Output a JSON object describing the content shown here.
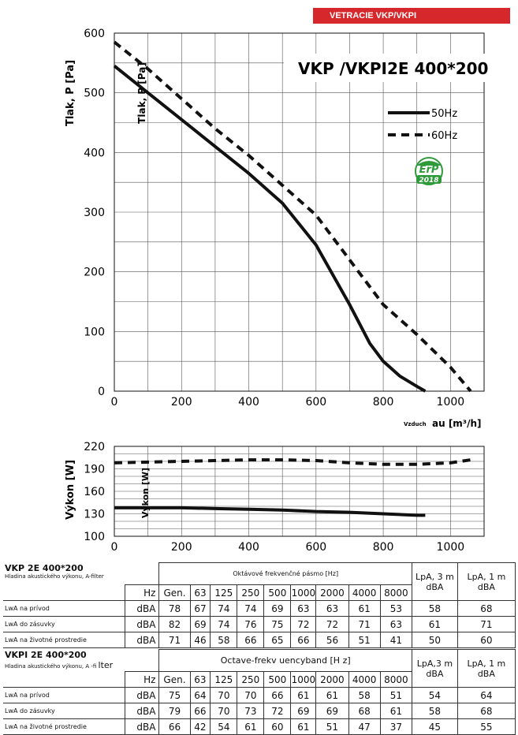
{
  "banner": "VETRACIE VKP/VKPI",
  "chart_data": [
    {
      "type": "line",
      "title": "VKP /VKPI2E 400*200",
      "ylabel": "Tlak, P [Pa]",
      "xlabel_prefix": "Vzduch",
      "xlabel": "au [m³/h]",
      "xlim": [
        0,
        1100
      ],
      "ylim": [
        0,
        600
      ],
      "xticks": [
        "0",
        "200",
        "400",
        "600",
        "800",
        "1000"
      ],
      "yticks": [
        "0",
        "100",
        "200",
        "300",
        "400",
        "500",
        "600"
      ],
      "grid": true,
      "legend_position": "top-right",
      "badge": {
        "top": "ErP",
        "bottom": "2018"
      },
      "series": [
        {
          "name": "50Hz",
          "style": "solid",
          "x": [
            0,
            100,
            200,
            300,
            400,
            500,
            600,
            700,
            760,
            800,
            850,
            900,
            925
          ],
          "y": [
            545,
            500,
            455,
            410,
            365,
            315,
            245,
            145,
            80,
            50,
            25,
            8,
            0
          ]
        },
        {
          "name": "60Hz",
          "style": "dashed",
          "x": [
            0,
            100,
            200,
            300,
            400,
            500,
            600,
            700,
            800,
            900,
            1000,
            1060
          ],
          "y": [
            585,
            540,
            490,
            440,
            395,
            345,
            295,
            220,
            145,
            95,
            40,
            0
          ]
        }
      ]
    },
    {
      "type": "line",
      "ylabel": "Výkon [W]",
      "xlim": [
        0,
        1100
      ],
      "ylim": [
        100,
        220
      ],
      "xticks": [
        "0",
        "200",
        "400",
        "600",
        "800",
        "1000"
      ],
      "yticks": [
        "100",
        "130",
        "160",
        "190",
        "220"
      ],
      "grid": true,
      "series": [
        {
          "style": "solid",
          "x": [
            0,
            100,
            200,
            300,
            400,
            500,
            600,
            700,
            800,
            900,
            925
          ],
          "y": [
            138,
            138,
            138,
            137,
            136,
            135,
            133,
            132,
            130,
            128,
            128
          ]
        },
        {
          "style": "dashed",
          "x": [
            0,
            100,
            200,
            300,
            400,
            500,
            600,
            700,
            750,
            800,
            900,
            1000,
            1060
          ],
          "y": [
            198,
            199,
            200,
            201,
            202,
            202,
            201,
            198,
            197,
            196,
            196,
            198,
            202
          ]
        }
      ]
    }
  ],
  "tables": [
    {
      "title": "VKP 2E 400*200",
      "subtitle": "Hladina akustického výkonu, A-filter",
      "band_label": "Oktávové frekvenčné pásmo [Hz]",
      "unit_label": "Hz",
      "headers": [
        "Gen.",
        "63",
        "125",
        "250",
        "500",
        "1000",
        "2000",
        "4000",
        "8000"
      ],
      "lp3": [
        "LpA, 3 m",
        "dBA"
      ],
      "lp1": [
        "LpA, 1 m",
        "dBA"
      ],
      "rows": [
        {
          "label": "LwA na prívod",
          "unit": "dBA",
          "values": [
            "78",
            "67",
            "74",
            "74",
            "69",
            "63",
            "63",
            "61",
            "53"
          ],
          "lp3": "58",
          "lp1": "68"
        },
        {
          "label": "LwA do zásuvky",
          "unit": "dBA",
          "values": [
            "82",
            "69",
            "74",
            "76",
            "75",
            "72",
            "72",
            "71",
            "63"
          ],
          "lp3": "61",
          "lp1": "71"
        },
        {
          "label": "LwA na životné prostredie",
          "unit": "dBA",
          "values": [
            "71",
            "46",
            "58",
            "66",
            "65",
            "66",
            "56",
            "51",
            "41"
          ],
          "lp3": "50",
          "lp1": "60"
        }
      ]
    },
    {
      "title": "VKPI 2E 400*200",
      "subtitle": "Hladina akustického výkonu, A -fi",
      "subtitle_tail": "lter",
      "band_label": "Octave-frekv uencyband [H z]",
      "unit_label": "Hz",
      "headers": [
        "Gen.",
        "63",
        "125",
        "250",
        "500",
        "1000",
        "2000",
        "4000",
        "8000"
      ],
      "lp3": [
        "LpA,3 m",
        "dBA"
      ],
      "lp1": [
        "LpA, 1 m",
        "dBA"
      ],
      "rows": [
        {
          "label": "LwA na prívod",
          "unit": "dBA",
          "values": [
            "75",
            "64",
            "70",
            "70",
            "66",
            "61",
            "61",
            "58",
            "51"
          ],
          "lp3": "54",
          "lp1": "64"
        },
        {
          "label": "LwA do zásuvky",
          "unit": "dBA",
          "values": [
            "79",
            "66",
            "70",
            "73",
            "72",
            "69",
            "69",
            "68",
            "61"
          ],
          "lp3": "58",
          "lp1": "68"
        },
        {
          "label": "LwA na životné prostredie",
          "unit": "dBA",
          "values": [
            "66",
            "42",
            "54",
            "61",
            "60",
            "61",
            "51",
            "47",
            "37"
          ],
          "lp3": "45",
          "lp1": "55"
        }
      ]
    }
  ]
}
